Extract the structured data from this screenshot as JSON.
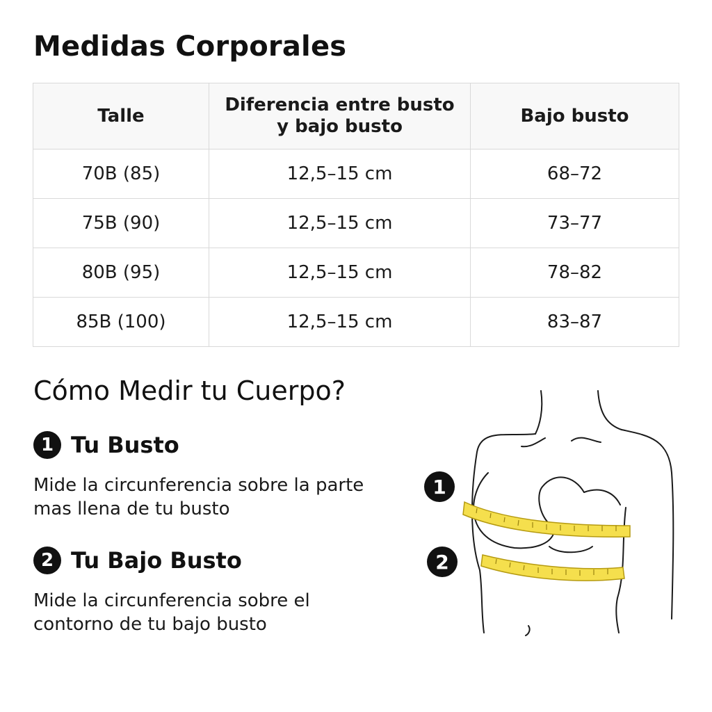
{
  "title": "Medidas Corporales",
  "table": {
    "headers": [
      "Talle",
      "Diferencia entre busto\ny bajo busto",
      "Bajo busto"
    ],
    "rows": [
      [
        "70B (85)",
        "12,5–15 cm",
        "68–72"
      ],
      [
        "75B (90)",
        "12,5–15 cm",
        "73–77"
      ],
      [
        "80B (95)",
        "12,5–15 cm",
        "78–82"
      ],
      [
        "85B (100)",
        "12,5–15 cm",
        "83–87"
      ]
    ]
  },
  "howto": {
    "title": "Cómo Medir tu Cuerpo?",
    "steps": [
      {
        "number": "1",
        "title": "Tu Busto",
        "description": "Mide la circunferencia sobre la parte mas llena de tu busto"
      },
      {
        "number": "2",
        "title": "Tu Bajo Busto",
        "description": "Mide la circunferencia sobre el contorno de tu bajo busto"
      }
    ]
  },
  "figure": {
    "icon": "torso-measuring-tape-illustration",
    "labels": [
      "1",
      "2"
    ],
    "tape_color": "#f5df4d"
  },
  "colors": {
    "text": "#111111",
    "border": "#d9d9d9",
    "header_bg": "#f8f8f8",
    "badge": "#111111"
  }
}
